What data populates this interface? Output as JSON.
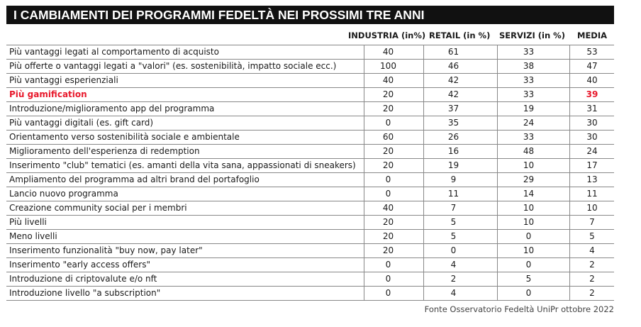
{
  "chart_data": {
    "type": "table",
    "title": "I CAMBIAMENTI DEI PROGRAMMI FEDELTÀ NEI PROSSIMI TRE ANNI",
    "columns": [
      "INDUSTRIA (in%)",
      "RETAIL (in %)",
      "SERVIZI (in %)",
      "MEDIA"
    ],
    "highlight_color": "#e8192c",
    "rows": [
      {
        "label": "Più vantaggi legati al comportamento di acquisto",
        "values": [
          "40",
          "61",
          "33",
          "53"
        ]
      },
      {
        "label": "Più offerte o vantaggi legati a \"valori\" (es. sostenibilità, impatto sociale ecc.)",
        "values": [
          "100",
          "46",
          "38",
          "47"
        ]
      },
      {
        "label": "Più vantaggi esperienziali",
        "values": [
          "40",
          "42",
          "33",
          "40"
        ]
      },
      {
        "label": "Più gamification",
        "values": [
          "20",
          "42",
          "33",
          "39"
        ],
        "highlight": true
      },
      {
        "label": "Introduzione/miglioramento app del programma",
        "values": [
          "20",
          "37",
          "19",
          "31"
        ]
      },
      {
        "label": "Più vantaggi digitali (es. gift card)",
        "values": [
          "0",
          "35",
          "24",
          "30"
        ]
      },
      {
        "label": "Orientamento verso sostenibilità sociale e ambientale",
        "values": [
          "60",
          "26",
          "33",
          "30"
        ]
      },
      {
        "label": "Miglioramento dell'esperienza di redemption",
        "values": [
          "20",
          "16",
          "48",
          "24"
        ]
      },
      {
        "label": "Inserimento \"club\" tematici (es. amanti della vita sana, appassionati di sneakers)",
        "values": [
          "20",
          "19",
          "10",
          "17"
        ]
      },
      {
        "label": "Ampliamento del programma ad altri brand del portafoglio",
        "values": [
          "0",
          "9",
          "29",
          "13"
        ]
      },
      {
        "label": "Lancio nuovo programma",
        "values": [
          "0",
          "11",
          "14",
          "11"
        ]
      },
      {
        "label": "Creazione community social per i membri",
        "values": [
          "40",
          "7",
          "10",
          "10"
        ]
      },
      {
        "label": "Più livelli",
        "values": [
          "20",
          "5",
          "10",
          "7"
        ]
      },
      {
        "label": "Meno livelli",
        "values": [
          "20",
          "5",
          "0",
          "5"
        ]
      },
      {
        "label": "Inserimento funzionalità \"buy now, pay later\"",
        "values": [
          "20",
          "0",
          "10",
          "4"
        ]
      },
      {
        "label": "Inserimento \"early access offers\"",
        "values": [
          "0",
          "4",
          "0",
          "2"
        ]
      },
      {
        "label": "Introduzione di criptovalute e/o nft",
        "values": [
          "0",
          "2",
          "5",
          "2"
        ]
      },
      {
        "label": "Introduzione livello \"a subscription\"",
        "values": [
          "0",
          "4",
          "0",
          "2"
        ]
      }
    ],
    "source": "Fonte Osservatorio Fedeltà UniPr ottobre 2022"
  }
}
